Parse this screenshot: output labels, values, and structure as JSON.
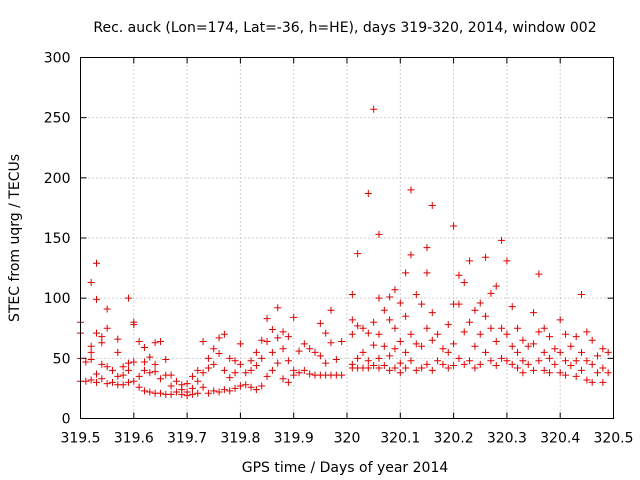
{
  "chart_data": {
    "type": "scatter",
    "title": "Rec. auck (Lon=174, Lat=-36, h=HE), days 319-320, 2014, window 002",
    "xlabel": "GPS time / Days of year 2014",
    "ylabel": "STEC from uqrg / TECUs",
    "xlim": [
      319.5,
      320.5
    ],
    "ylim": [
      0,
      300
    ],
    "xticks": [
      "319.5",
      "319.6",
      "319.7",
      "319.8",
      "319.9",
      "320",
      "320.1",
      "320.2",
      "320.3",
      "320.4",
      "320.5"
    ],
    "yticks": [
      "0",
      "50",
      "100",
      "150",
      "200",
      "250",
      "300"
    ],
    "grid": true,
    "marker": "+",
    "color": "#e00000",
    "points": [
      [
        319.5,
        80
      ],
      [
        319.5,
        71
      ],
      [
        319.5,
        50
      ],
      [
        319.5,
        31
      ],
      [
        319.51,
        47
      ],
      [
        319.51,
        31
      ],
      [
        319.52,
        113
      ],
      [
        319.52,
        60
      ],
      [
        319.52,
        55
      ],
      [
        319.52,
        49
      ],
      [
        319.52,
        32
      ],
      [
        319.53,
        129
      ],
      [
        319.53,
        99
      ],
      [
        319.53,
        71
      ],
      [
        319.53,
        37
      ],
      [
        319.53,
        30
      ],
      [
        319.54,
        68
      ],
      [
        319.54,
        63
      ],
      [
        319.54,
        45
      ],
      [
        319.54,
        33
      ],
      [
        319.55,
        91
      ],
      [
        319.55,
        75
      ],
      [
        319.55,
        43
      ],
      [
        319.55,
        29
      ],
      [
        319.56,
        40
      ],
      [
        319.56,
        30
      ],
      [
        319.57,
        66
      ],
      [
        319.57,
        55
      ],
      [
        319.57,
        35
      ],
      [
        319.57,
        28
      ],
      [
        319.58,
        43
      ],
      [
        319.58,
        36
      ],
      [
        319.58,
        28
      ],
      [
        319.59,
        100
      ],
      [
        319.59,
        46
      ],
      [
        319.59,
        40
      ],
      [
        319.59,
        30
      ],
      [
        319.6,
        80
      ],
      [
        319.6,
        78
      ],
      [
        319.6,
        47
      ],
      [
        319.6,
        31
      ],
      [
        319.61,
        64
      ],
      [
        319.61,
        35
      ],
      [
        319.61,
        26
      ],
      [
        319.62,
        59
      ],
      [
        319.62,
        47
      ],
      [
        319.62,
        40
      ],
      [
        319.62,
        23
      ],
      [
        319.63,
        51
      ],
      [
        319.63,
        38
      ],
      [
        319.63,
        22
      ],
      [
        319.64,
        63
      ],
      [
        319.64,
        45
      ],
      [
        319.64,
        39
      ],
      [
        319.64,
        21
      ],
      [
        319.65,
        64
      ],
      [
        319.65,
        33
      ],
      [
        319.65,
        21
      ],
      [
        319.66,
        49
      ],
      [
        319.66,
        36
      ],
      [
        319.66,
        20
      ],
      [
        319.67,
        36
      ],
      [
        319.67,
        27
      ],
      [
        319.67,
        20
      ],
      [
        319.68,
        31
      ],
      [
        319.68,
        22
      ],
      [
        319.69,
        28
      ],
      [
        319.69,
        24
      ],
      [
        319.69,
        20
      ],
      [
        319.7,
        29
      ],
      [
        319.7,
        22
      ],
      [
        319.7,
        19
      ],
      [
        319.71,
        35
      ],
      [
        319.71,
        25
      ],
      [
        319.71,
        20
      ],
      [
        319.72,
        40
      ],
      [
        319.72,
        31
      ],
      [
        319.72,
        21
      ],
      [
        319.73,
        64
      ],
      [
        319.73,
        38
      ],
      [
        319.73,
        26
      ],
      [
        319.74,
        50
      ],
      [
        319.74,
        42
      ],
      [
        319.74,
        21
      ],
      [
        319.75,
        58
      ],
      [
        319.75,
        45
      ],
      [
        319.75,
        23
      ],
      [
        319.76,
        67
      ],
      [
        319.76,
        54
      ],
      [
        319.76,
        22
      ],
      [
        319.77,
        70
      ],
      [
        319.77,
        40
      ],
      [
        319.77,
        24
      ],
      [
        319.78,
        50
      ],
      [
        319.78,
        34
      ],
      [
        319.78,
        23
      ],
      [
        319.79,
        48
      ],
      [
        319.79,
        38
      ],
      [
        319.79,
        25
      ],
      [
        319.8,
        62
      ],
      [
        319.8,
        45
      ],
      [
        319.8,
        27
      ],
      [
        319.81,
        38
      ],
      [
        319.81,
        28
      ],
      [
        319.82,
        48
      ],
      [
        319.82,
        40
      ],
      [
        319.82,
        26
      ],
      [
        319.83,
        55
      ],
      [
        319.83,
        44
      ],
      [
        319.83,
        24
      ],
      [
        319.84,
        65
      ],
      [
        319.84,
        50
      ],
      [
        319.84,
        27
      ],
      [
        319.85,
        83
      ],
      [
        319.85,
        64
      ],
      [
        319.85,
        35
      ],
      [
        319.86,
        74
      ],
      [
        319.86,
        55
      ],
      [
        319.86,
        40
      ],
      [
        319.87,
        92
      ],
      [
        319.87,
        67
      ],
      [
        319.87,
        46
      ],
      [
        319.88,
        72
      ],
      [
        319.88,
        58
      ],
      [
        319.88,
        33
      ],
      [
        319.89,
        68
      ],
      [
        319.89,
        48
      ],
      [
        319.89,
        30
      ],
      [
        319.9,
        84
      ],
      [
        319.9,
        40
      ],
      [
        319.9,
        36
      ],
      [
        319.91,
        56
      ],
      [
        319.91,
        38
      ],
      [
        319.92,
        62
      ],
      [
        319.92,
        40
      ],
      [
        319.93,
        58
      ],
      [
        319.93,
        37
      ],
      [
        319.94,
        55
      ],
      [
        319.94,
        36
      ],
      [
        319.95,
        79
      ],
      [
        319.95,
        52
      ],
      [
        319.95,
        36
      ],
      [
        319.96,
        71
      ],
      [
        319.96,
        46
      ],
      [
        319.96,
        36
      ],
      [
        319.97,
        90
      ],
      [
        319.97,
        63
      ],
      [
        319.97,
        36
      ],
      [
        319.98,
        49
      ],
      [
        319.98,
        36
      ],
      [
        319.99,
        64
      ],
      [
        319.99,
        36
      ],
      [
        320.01,
        103
      ],
      [
        320.01,
        82
      ],
      [
        320.01,
        70
      ],
      [
        320.01,
        45
      ],
      [
        320.01,
        42
      ],
      [
        320.02,
        137
      ],
      [
        320.02,
        77
      ],
      [
        320.02,
        50
      ],
      [
        320.02,
        42
      ],
      [
        320.03,
        75
      ],
      [
        320.03,
        55
      ],
      [
        320.03,
        42
      ],
      [
        320.04,
        187
      ],
      [
        320.04,
        71
      ],
      [
        320.04,
        48
      ],
      [
        320.04,
        42
      ],
      [
        320.05,
        257
      ],
      [
        320.05,
        80
      ],
      [
        320.05,
        61
      ],
      [
        320.05,
        44
      ],
      [
        320.06,
        153
      ],
      [
        320.06,
        100
      ],
      [
        320.06,
        70
      ],
      [
        320.06,
        50
      ],
      [
        320.06,
        42
      ],
      [
        320.07,
        90
      ],
      [
        320.07,
        60
      ],
      [
        320.07,
        44
      ],
      [
        320.08,
        101
      ],
      [
        320.08,
        82
      ],
      [
        320.08,
        52
      ],
      [
        320.08,
        40
      ],
      [
        320.09,
        107
      ],
      [
        320.09,
        75
      ],
      [
        320.09,
        58
      ],
      [
        320.09,
        42
      ],
      [
        320.1,
        96
      ],
      [
        320.1,
        64
      ],
      [
        320.1,
        46
      ],
      [
        320.1,
        38
      ],
      [
        320.11,
        121
      ],
      [
        320.11,
        85
      ],
      [
        320.11,
        55
      ],
      [
        320.11,
        42
      ],
      [
        320.12,
        190
      ],
      [
        320.12,
        136
      ],
      [
        320.12,
        70
      ],
      [
        320.12,
        48
      ],
      [
        320.13,
        103
      ],
      [
        320.13,
        62
      ],
      [
        320.13,
        40
      ],
      [
        320.14,
        95
      ],
      [
        320.14,
        60
      ],
      [
        320.14,
        42
      ],
      [
        320.15,
        142
      ],
      [
        320.15,
        121
      ],
      [
        320.15,
        75
      ],
      [
        320.15,
        45
      ],
      [
        320.16,
        177
      ],
      [
        320.16,
        88
      ],
      [
        320.16,
        65
      ],
      [
        320.16,
        40
      ],
      [
        320.17,
        70
      ],
      [
        320.17,
        48
      ],
      [
        320.18,
        58
      ],
      [
        320.18,
        45
      ],
      [
        320.19,
        78
      ],
      [
        320.19,
        55
      ],
      [
        320.19,
        42
      ],
      [
        320.2,
        160
      ],
      [
        320.2,
        95
      ],
      [
        320.2,
        62
      ],
      [
        320.2,
        44
      ],
      [
        320.21,
        119
      ],
      [
        320.21,
        95
      ],
      [
        320.21,
        50
      ],
      [
        320.22,
        113
      ],
      [
        320.22,
        72
      ],
      [
        320.22,
        45
      ],
      [
        320.23,
        131
      ],
      [
        320.23,
        80
      ],
      [
        320.23,
        48
      ],
      [
        320.24,
        90
      ],
      [
        320.24,
        60
      ],
      [
        320.24,
        42
      ],
      [
        320.25,
        96
      ],
      [
        320.25,
        70
      ],
      [
        320.25,
        45
      ],
      [
        320.26,
        134
      ],
      [
        320.26,
        85
      ],
      [
        320.26,
        55
      ],
      [
        320.27,
        104
      ],
      [
        320.27,
        75
      ],
      [
        320.27,
        48
      ],
      [
        320.28,
        110
      ],
      [
        320.28,
        64
      ],
      [
        320.28,
        44
      ],
      [
        320.29,
        148
      ],
      [
        320.29,
        75
      ],
      [
        320.29,
        50
      ],
      [
        320.3,
        131
      ],
      [
        320.3,
        70
      ],
      [
        320.3,
        48
      ],
      [
        320.31,
        93
      ],
      [
        320.31,
        60
      ],
      [
        320.31,
        45
      ],
      [
        320.32,
        75
      ],
      [
        320.32,
        55
      ],
      [
        320.32,
        42
      ],
      [
        320.33,
        65
      ],
      [
        320.33,
        48
      ],
      [
        320.33,
        38
      ],
      [
        320.34,
        60
      ],
      [
        320.34,
        45
      ],
      [
        320.35,
        88
      ],
      [
        320.35,
        62
      ],
      [
        320.35,
        40
      ],
      [
        320.36,
        120
      ],
      [
        320.36,
        72
      ],
      [
        320.36,
        48
      ],
      [
        320.37,
        75
      ],
      [
        320.37,
        55
      ],
      [
        320.37,
        40
      ],
      [
        320.38,
        68
      ],
      [
        320.38,
        50
      ],
      [
        320.38,
        38
      ],
      [
        320.39,
        58
      ],
      [
        320.39,
        45
      ],
      [
        320.4,
        82
      ],
      [
        320.4,
        55
      ],
      [
        320.4,
        38
      ],
      [
        320.41,
        70
      ],
      [
        320.41,
        48
      ],
      [
        320.41,
        36
      ],
      [
        320.42,
        60
      ],
      [
        320.42,
        44
      ],
      [
        320.43,
        68
      ],
      [
        320.43,
        48
      ],
      [
        320.43,
        35
      ],
      [
        320.44,
        103
      ],
      [
        320.44,
        55
      ],
      [
        320.44,
        40
      ],
      [
        320.45,
        72
      ],
      [
        320.45,
        48
      ],
      [
        320.45,
        32
      ],
      [
        320.46,
        65
      ],
      [
        320.46,
        45
      ],
      [
        320.46,
        30
      ],
      [
        320.47,
        52
      ],
      [
        320.47,
        38
      ],
      [
        320.48,
        58
      ],
      [
        320.48,
        42
      ],
      [
        320.48,
        30
      ],
      [
        320.49,
        55
      ],
      [
        320.49,
        38
      ]
    ]
  }
}
